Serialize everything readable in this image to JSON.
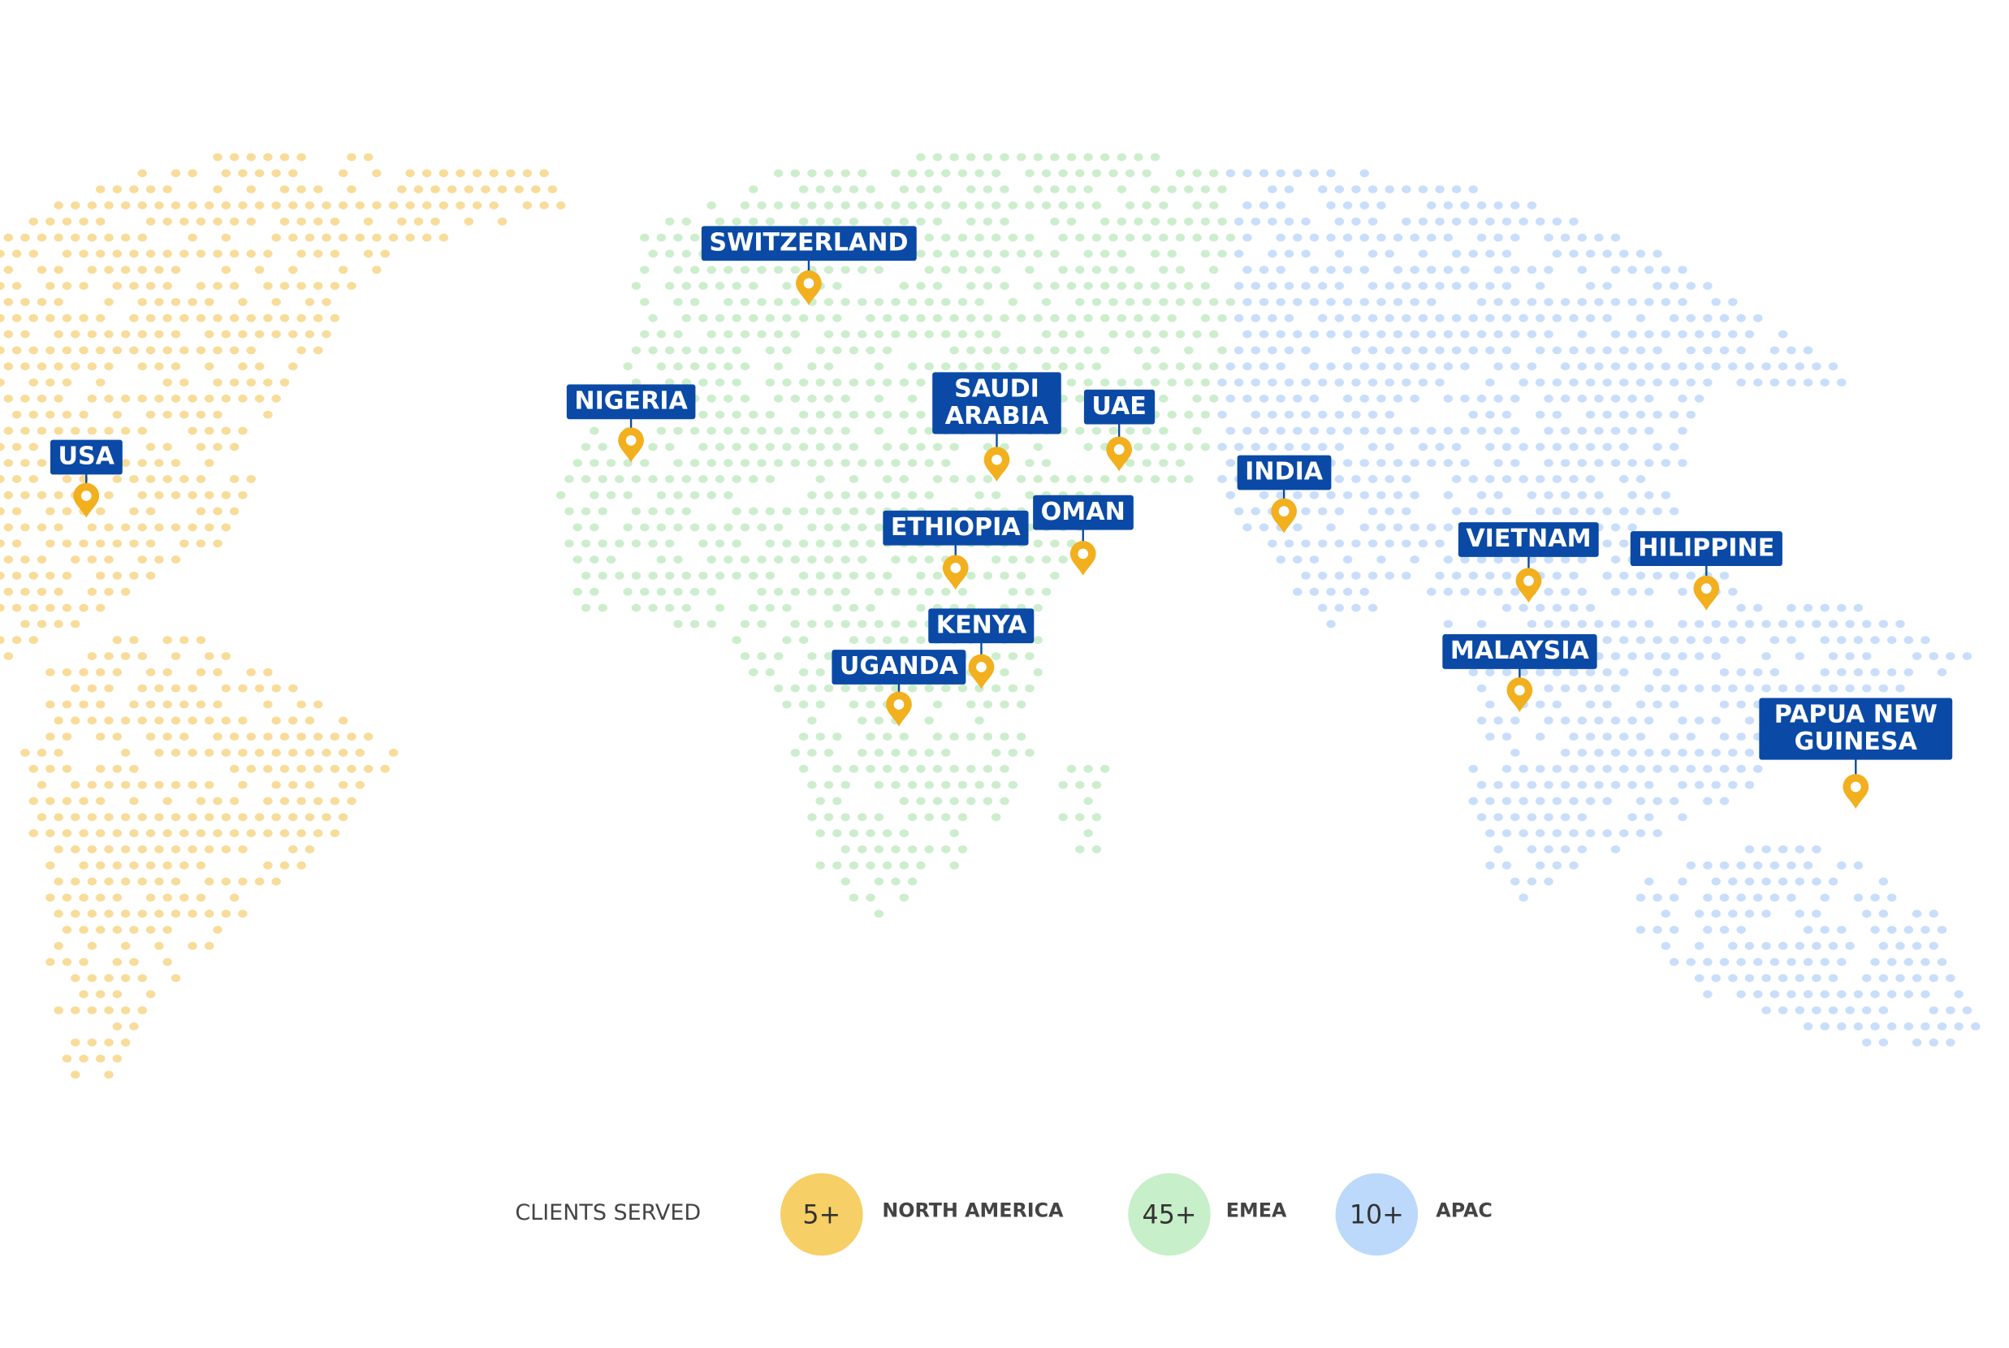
{
  "locations": [
    {
      "label": "USA"
    },
    {
      "label": "NIGERIA"
    },
    {
      "label": "SWITZERLAND"
    },
    {
      "label": "SAUDI ARABIA"
    },
    {
      "label": "UAE"
    },
    {
      "label": "ETHIOPIA"
    },
    {
      "label": "OMAN"
    },
    {
      "label": "KENYA"
    },
    {
      "label": "UGANDA"
    },
    {
      "label": "INDIA"
    },
    {
      "label": "VIETNAM"
    },
    {
      "label": "HILIPPINE"
    },
    {
      "label": "MALAYSIA"
    },
    {
      "label": "PAPUA NEW GUINESA"
    }
  ],
  "legend": {
    "title": "CLIENTS SERVED",
    "items": [
      {
        "count": "5+",
        "region": "NORTH AMERICA"
      },
      {
        "count": "45+",
        "region": "EMEA"
      },
      {
        "count": "10+",
        "region": "APAC"
      }
    ]
  }
}
